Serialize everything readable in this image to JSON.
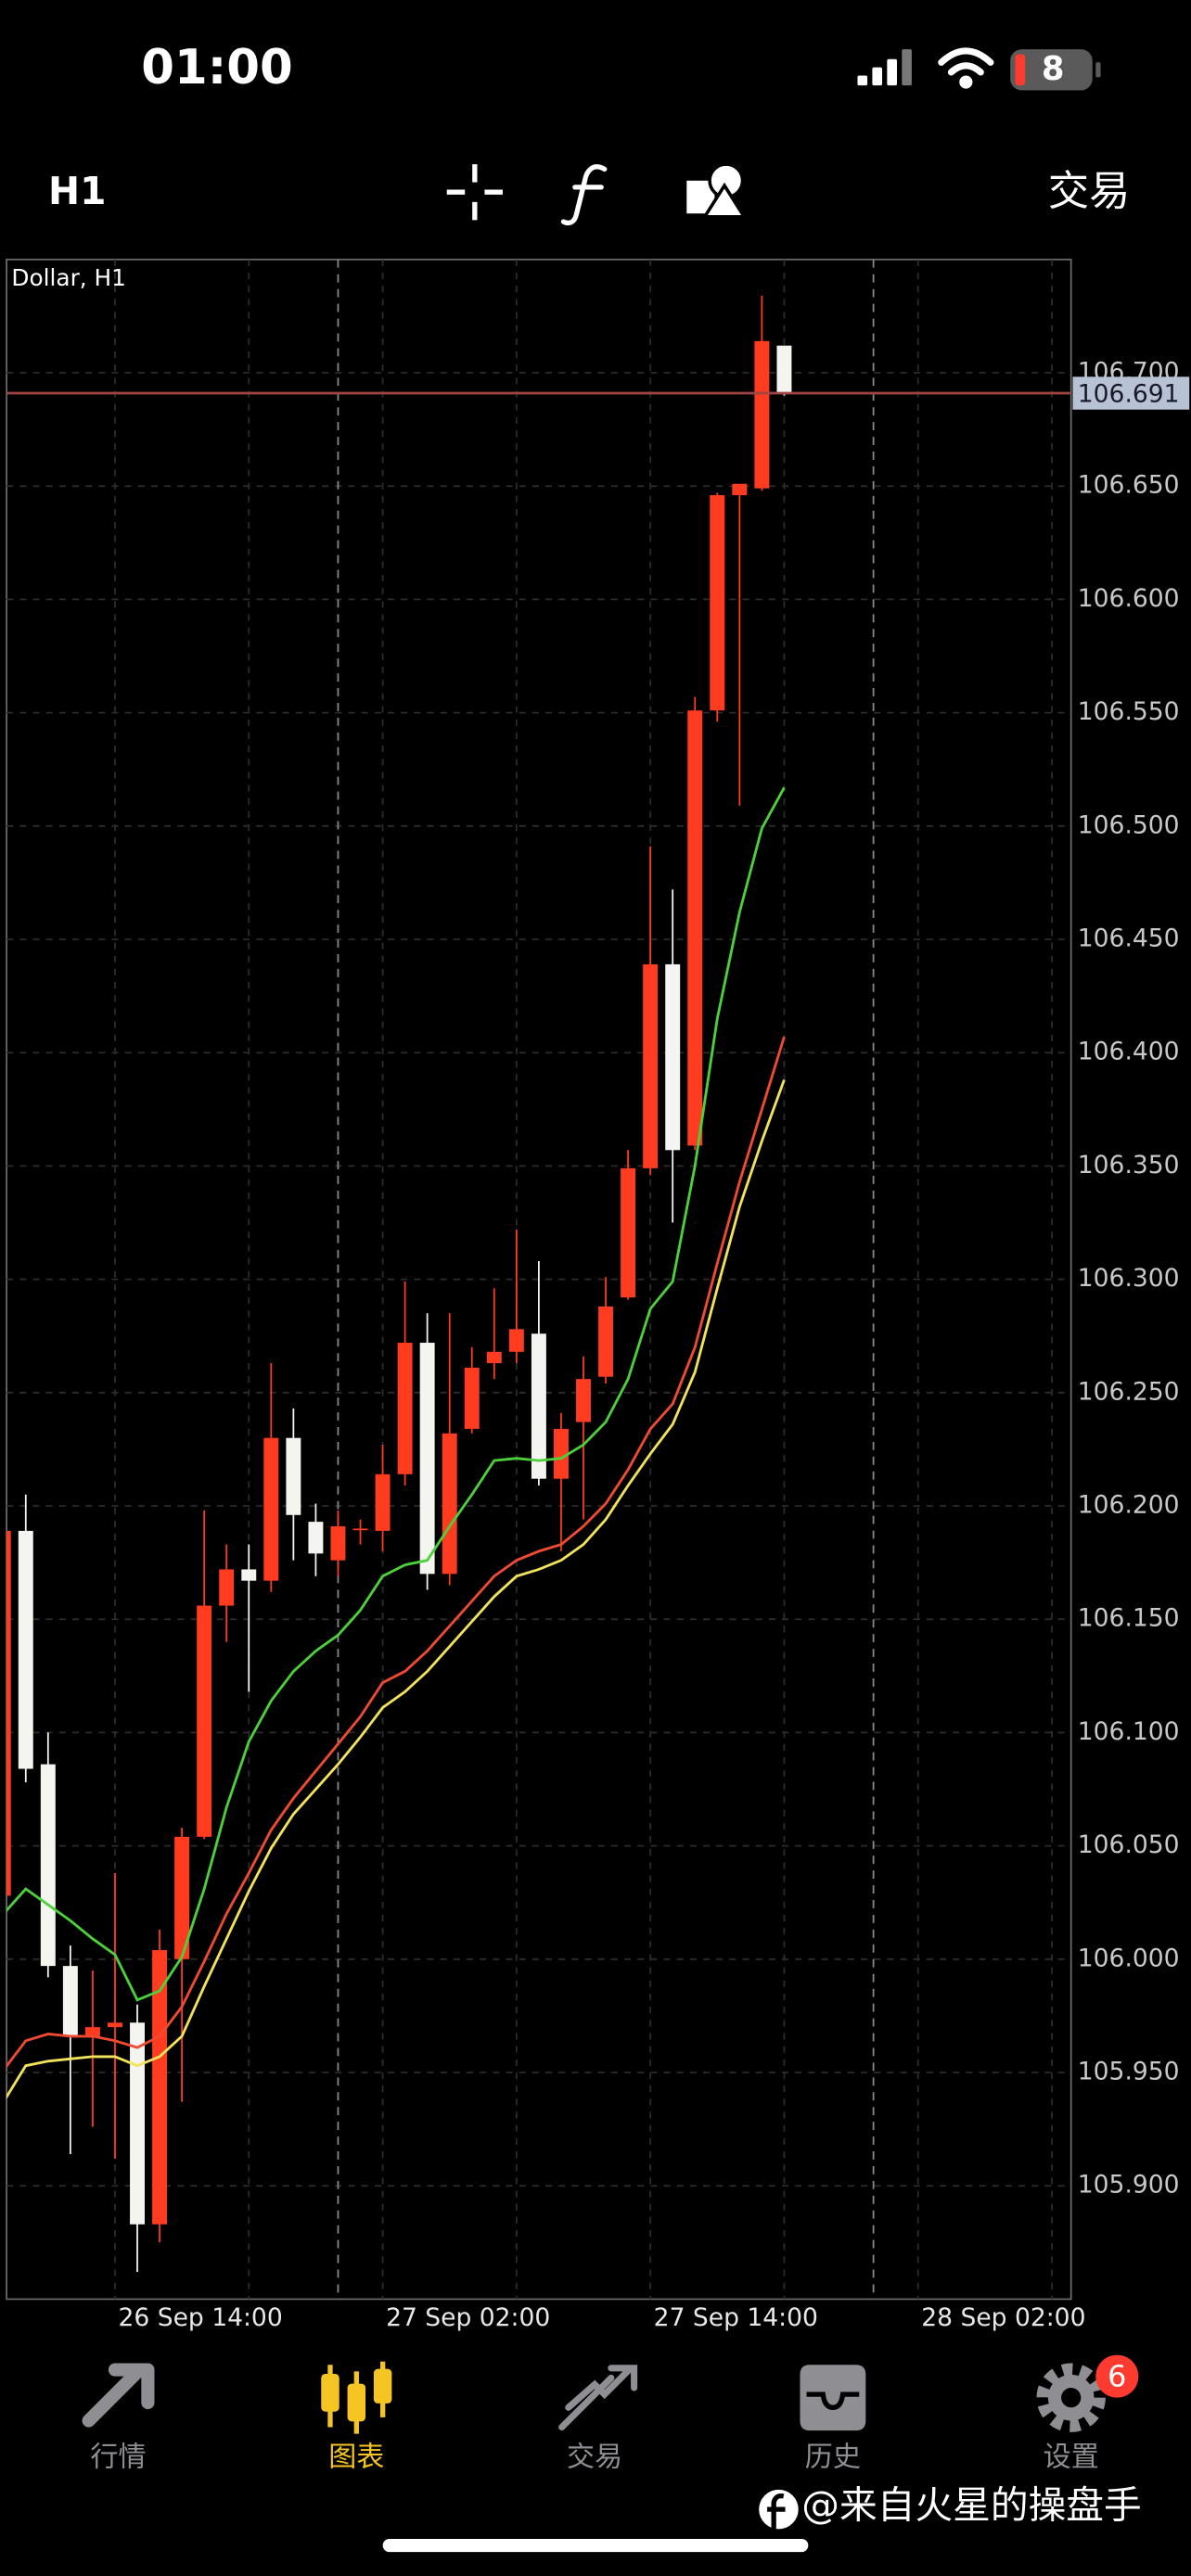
{
  "status_bar": {
    "time": "01:00",
    "battery": "8"
  },
  "toolbar": {
    "timeframe": "H1",
    "trade": "交易"
  },
  "chart_data": {
    "type": "candlestick",
    "title": "Dollar, H1",
    "x": [
      9,
      10,
      11,
      12,
      13,
      14,
      15,
      16,
      17,
      18,
      19,
      20,
      21,
      22,
      23,
      24,
      25,
      26,
      27,
      28,
      29,
      30,
      31,
      32,
      33,
      34,
      35,
      36,
      37,
      38,
      39,
      40,
      41,
      42,
      43,
      44
    ],
    "open": [
      106.028,
      106.189,
      106.086,
      105.997,
      105.966,
      105.97,
      105.972,
      105.883,
      106.0,
      106.054,
      106.156,
      106.172,
      106.167,
      106.23,
      106.193,
      106.176,
      106.19,
      106.189,
      106.214,
      106.272,
      106.17,
      106.234,
      106.263,
      106.268,
      106.276,
      106.212,
      106.237,
      106.257,
      106.292,
      106.349,
      106.439,
      106.359,
      106.551,
      106.646,
      106.649,
      106.712
    ],
    "high": [
      106.195,
      106.205,
      106.1,
      106.006,
      105.995,
      106.038,
      105.98,
      106.013,
      106.058,
      106.198,
      106.183,
      106.183,
      106.263,
      106.243,
      106.201,
      106.198,
      106.194,
      106.227,
      106.299,
      106.285,
      106.285,
      106.27,
      106.296,
      106.322,
      106.308,
      106.241,
      106.266,
      106.301,
      106.357,
      106.491,
      106.472,
      106.557,
      106.647,
      106.651,
      106.734,
      106.712
    ],
    "low": [
      106.02,
      106.078,
      105.992,
      105.914,
      105.926,
      105.912,
      105.862,
      105.875,
      105.937,
      106.053,
      106.14,
      106.118,
      106.162,
      106.176,
      106.169,
      106.169,
      106.183,
      106.18,
      106.209,
      106.163,
      106.165,
      106.232,
      106.256,
      106.263,
      106.209,
      106.18,
      106.194,
      106.254,
      106.291,
      106.346,
      106.325,
      106.357,
      106.546,
      106.509,
      106.648,
      106.69
    ],
    "close": [
      106.189,
      106.084,
      105.997,
      105.966,
      105.97,
      105.972,
      105.883,
      106.004,
      106.054,
      106.156,
      106.172,
      106.167,
      106.23,
      106.196,
      106.179,
      106.191,
      106.19,
      106.214,
      106.272,
      106.17,
      106.232,
      106.261,
      106.268,
      106.278,
      106.212,
      106.234,
      106.256,
      106.288,
      106.349,
      106.439,
      106.357,
      106.551,
      106.646,
      106.651,
      106.714,
      106.691
    ],
    "up_color": "#ff3b20",
    "down_color": "#f4f4f0",
    "overlays": [
      {
        "color": "#4cd13a",
        "values": [
          106.02,
          106.031,
          106.024,
          106.017,
          106.009,
          106.002,
          105.982,
          105.986,
          106.001,
          106.031,
          106.067,
          106.096,
          106.114,
          106.127,
          106.136,
          106.143,
          106.154,
          106.169,
          106.174,
          106.176,
          106.191,
          106.205,
          106.22,
          106.221,
          106.22,
          106.221,
          106.227,
          106.237,
          106.256,
          106.287,
          106.299,
          106.35,
          106.415,
          106.462,
          106.499,
          106.517
        ]
      },
      {
        "color": "#f04a33",
        "values": [
          105.951,
          105.964,
          105.967,
          105.966,
          105.966,
          105.964,
          105.961,
          105.966,
          105.979,
          105.999,
          106.02,
          106.038,
          106.057,
          106.071,
          106.083,
          106.095,
          106.107,
          106.122,
          106.127,
          106.136,
          106.147,
          106.158,
          106.169,
          106.176,
          106.18,
          106.183,
          106.191,
          106.201,
          106.216,
          106.234,
          106.245,
          106.27,
          106.307,
          106.343,
          106.375,
          106.407
        ]
      },
      {
        "color": "#f2e35a",
        "values": [
          105.937,
          105.953,
          105.955,
          105.956,
          105.957,
          105.957,
          105.953,
          105.957,
          105.966,
          105.988,
          106.009,
          106.03,
          106.049,
          106.064,
          106.075,
          106.086,
          106.098,
          106.111,
          106.118,
          106.127,
          106.138,
          106.149,
          106.16,
          106.169,
          106.172,
          106.176,
          106.183,
          106.194,
          106.209,
          106.223,
          106.236,
          106.259,
          106.296,
          106.332,
          106.361,
          106.388
        ]
      }
    ],
    "last_price": 106.691,
    "last_price_color": "#a04545",
    "xlim": [
      9.14,
      56.86
    ],
    "xticks": [
      {
        "value": 14,
        "label": "26 Sep 14:00"
      },
      {
        "value": 26,
        "label": "27 Sep 02:00"
      },
      {
        "value": 38,
        "label": "27 Sep 14:00"
      },
      {
        "value": 50,
        "label": "28 Sep 02:00"
      }
    ],
    "xgrid_minor": [
      20,
      32,
      44,
      56
    ],
    "period_separators": [
      24,
      48
    ],
    "ylim": [
      105.85,
      106.75
    ],
    "yticks": [
      {
        "value": 105.9,
        "label": "105.900"
      },
      {
        "value": 105.95,
        "label": "105.950"
      },
      {
        "value": 106.0,
        "label": "106.000"
      },
      {
        "value": 106.05,
        "label": "106.050"
      },
      {
        "value": 106.1,
        "label": "106.100"
      },
      {
        "value": 106.15,
        "label": "106.150"
      },
      {
        "value": 106.2,
        "label": "106.200"
      },
      {
        "value": 106.25,
        "label": "106.250"
      },
      {
        "value": 106.3,
        "label": "106.300"
      },
      {
        "value": 106.35,
        "label": "106.350"
      },
      {
        "value": 106.4,
        "label": "106.400"
      },
      {
        "value": 106.45,
        "label": "106.450"
      },
      {
        "value": 106.5,
        "label": "106.500"
      },
      {
        "value": 106.55,
        "label": "106.550"
      },
      {
        "value": 106.6,
        "label": "106.600"
      },
      {
        "value": 106.65,
        "label": "106.650"
      },
      {
        "value": 106.7,
        "label": "106.700"
      }
    ],
    "grid": true
  },
  "tab_bar": {
    "tabs": [
      {
        "label": "行情"
      },
      {
        "label": "图表"
      },
      {
        "label": "交易"
      },
      {
        "label": "历史"
      },
      {
        "label": "设置"
      }
    ],
    "badge": "6"
  },
  "watermark": "@来自火星的操盘手"
}
